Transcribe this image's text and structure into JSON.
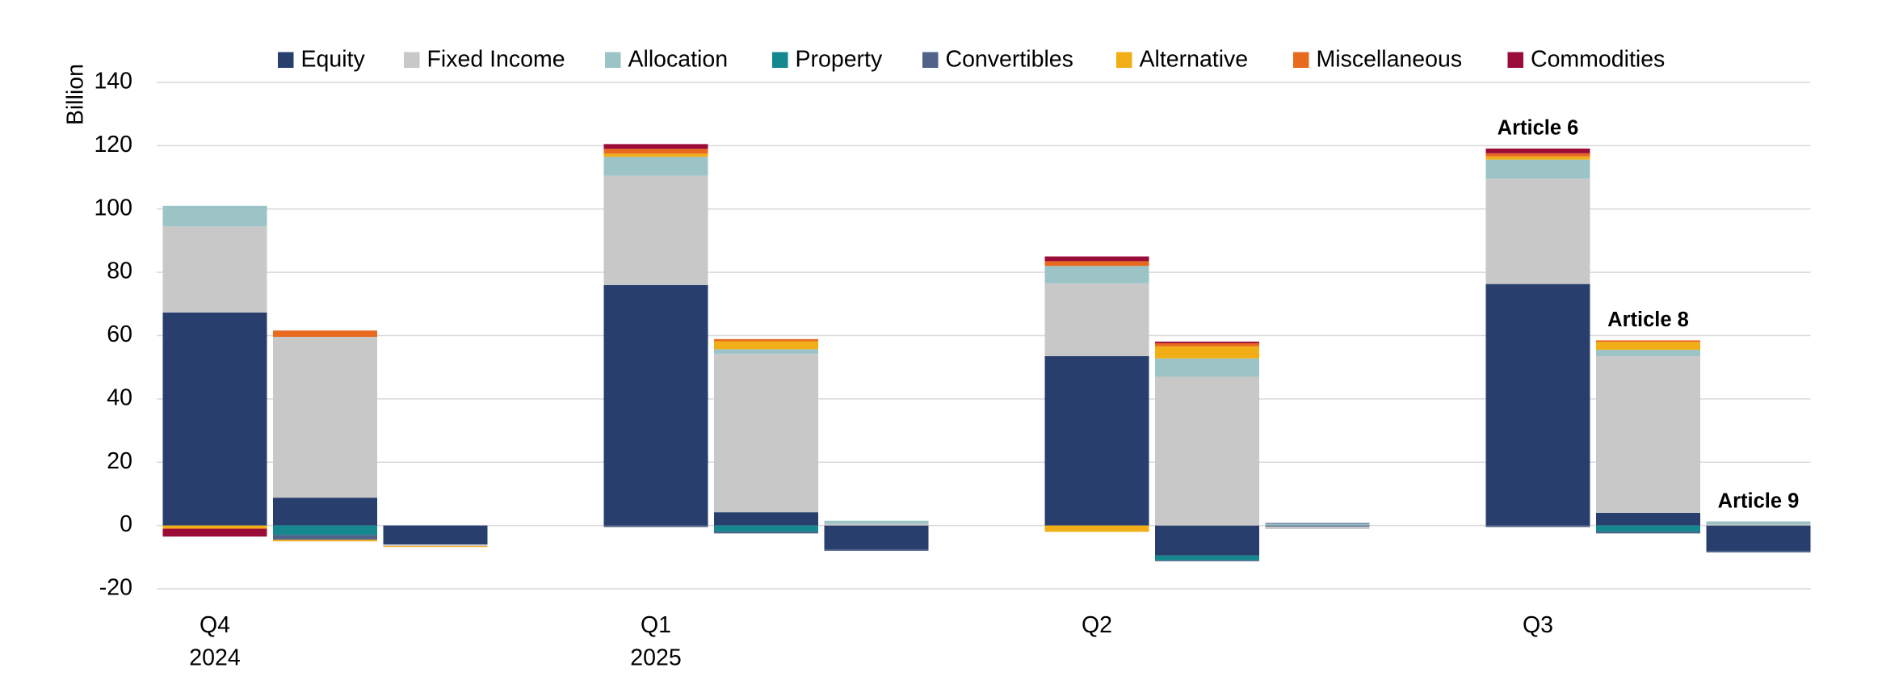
{
  "chart_data": {
    "type": "grouped-stacked-bar",
    "y_label": "Billion",
    "categories": [
      [
        "Q4",
        "2024"
      ],
      [
        "Q1",
        "2025"
      ],
      [
        "Q2"
      ],
      [
        "Q3"
      ]
    ],
    "annotations": [
      "Article 6",
      "Article 8",
      "Article 9"
    ],
    "ylim": [
      -20,
      140
    ],
    "yticks": [
      -20,
      0,
      20,
      40,
      60,
      80,
      100,
      120,
      140
    ],
    "grid": true,
    "series": [
      {
        "name": "Equity",
        "color": "#283f6e",
        "values": [
          [
            67.3,
            8.8,
            -6
          ],
          [
            76,
            4.2,
            -7.5
          ],
          [
            53.5,
            -9.5,
            -0.3
          ],
          [
            76.3,
            4,
            -8
          ]
        ]
      },
      {
        "name": "Fixed Income",
        "color": "#c8c8c8",
        "values": [
          [
            27.2,
            50.8,
            -0.5
          ],
          [
            34.5,
            50,
            0.5
          ],
          [
            23,
            47,
            -0.8
          ],
          [
            33.3,
            49.5,
            0.3
          ]
        ]
      },
      {
        "name": "Allocation",
        "color": "#9cc4c6",
        "values": [
          [
            6.5,
            0,
            0
          ],
          [
            6,
            1.5,
            1
          ],
          [
            5.5,
            5.8,
            0.5
          ],
          [
            6,
            2,
            1
          ]
        ]
      },
      {
        "name": "Property",
        "color": "#14878f",
        "values": [
          [
            0,
            -3,
            0
          ],
          [
            0,
            -2,
            0
          ],
          [
            0,
            -1.5,
            0
          ],
          [
            0,
            -2,
            0
          ]
        ]
      },
      {
        "name": "Convertibles",
        "color": "#51638a",
        "values": [
          [
            0,
            -1.5,
            0
          ],
          [
            -0.5,
            -0.5,
            -0.5
          ],
          [
            0,
            -0.3,
            0.3
          ],
          [
            -0.5,
            -0.5,
            -0.5
          ]
        ]
      },
      {
        "name": "Alternative",
        "color": "#f2ae16",
        "values": [
          [
            -1,
            -0.5,
            -0.3
          ],
          [
            1,
            2.5,
            0
          ],
          [
            -2,
            3.8,
            0
          ],
          [
            1,
            2.5,
            0
          ]
        ]
      },
      {
        "name": "Miscellaneous",
        "color": "#e86a1f",
        "values": [
          [
            0,
            2,
            0
          ],
          [
            1.5,
            0.7,
            0
          ],
          [
            1.5,
            1,
            0
          ],
          [
            1,
            0.5,
            0
          ]
        ]
      },
      {
        "name": "Commodities",
        "color": "#9b0c39",
        "values": [
          [
            -2.5,
            0,
            0
          ],
          [
            1.5,
            0,
            0
          ],
          [
            1.5,
            0.5,
            0
          ],
          [
            1.5,
            0,
            0
          ]
        ]
      }
    ]
  }
}
